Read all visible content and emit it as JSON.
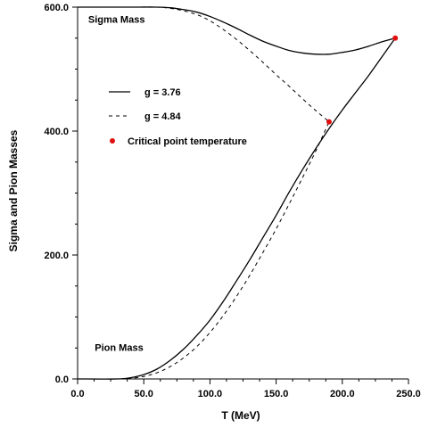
{
  "chart_data": {
    "type": "line",
    "xlabel": "T (MeV)",
    "ylabel": "Sigma and Pion Masses",
    "xlim": [
      0,
      250
    ],
    "ylim": [
      0,
      600
    ],
    "xticks": [
      "0.0",
      "50.0",
      "100.0",
      "150.0",
      "200.0",
      "250.0"
    ],
    "xtick_values": [
      0,
      50,
      100,
      150,
      200,
      250
    ],
    "yticks": [
      "0.0",
      "200.0",
      "400.0",
      "600.0"
    ],
    "ytick_values": [
      0,
      200,
      400,
      600
    ],
    "grid": false,
    "legend_position": "upper-left",
    "annotations": [
      {
        "text": "Sigma Mass",
        "x": 8,
        "y": 575
      },
      {
        "text": "Pion Mass",
        "x": 13,
        "y": 45
      }
    ],
    "series": [
      {
        "name": "g = 3.76",
        "style": "solid",
        "color": "#000000",
        "segments": [
          {
            "label": "sigma",
            "x": [
              0,
              20,
              40,
              60,
              70,
              80,
              90,
              100,
              110,
              120,
              130,
              140,
              150,
              160,
              170,
              180,
              190,
              200,
              210,
              220,
              230,
              240
            ],
            "y": [
              600,
              600,
              600,
              600,
              599,
              596,
              592,
              585,
              576,
              566,
              555,
              545,
              537,
              530,
              526,
              524,
              524,
              527,
              531,
              537,
              544,
              550
            ]
          },
          {
            "label": "pion",
            "x": [
              0,
              30,
              40,
              50,
              60,
              70,
              80,
              90,
              100,
              110,
              120,
              130,
              140,
              150,
              160,
              170,
              180,
              190,
              200,
              210,
              220,
              230,
              240
            ],
            "y": [
              0,
              0,
              2,
              7,
              16,
              30,
              48,
              70,
              95,
              125,
              158,
              192,
              228,
              264,
              302,
              338,
              372,
              404,
              434,
              462,
              490,
              520,
              550
            ]
          }
        ]
      },
      {
        "name": "g = 4.84",
        "style": "dashed",
        "color": "#000000",
        "segments": [
          {
            "label": "sigma",
            "x": [
              0,
              20,
              40,
              60,
              70,
              80,
              90,
              100,
              110,
              120,
              130,
              140,
              150,
              160,
              170,
              180,
              190
            ],
            "y": [
              600,
              600,
              600,
              600,
              598,
              594,
              588,
              578,
              564,
              548,
              530,
              511,
              491,
              472,
              452,
              433,
              415
            ]
          },
          {
            "label": "pion",
            "x": [
              0,
              30,
              40,
              50,
              60,
              70,
              80,
              90,
              100,
              110,
              120,
              130,
              140,
              150,
              160,
              170,
              180,
              190
            ],
            "y": [
              0,
              0,
              1,
              4,
              10,
              20,
              34,
              52,
              75,
              102,
              133,
              167,
              204,
              242,
              283,
              325,
              368,
              415
            ]
          }
        ]
      }
    ],
    "critical_points": {
      "name": "Critical point temperature",
      "color": "#e01010",
      "points": [
        {
          "x": 240,
          "y": 550
        },
        {
          "x": 190,
          "y": 415
        }
      ]
    }
  }
}
